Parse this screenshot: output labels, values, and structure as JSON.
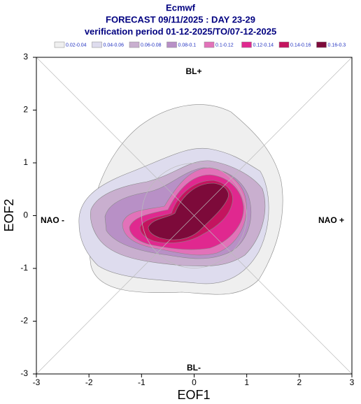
{
  "chart_data": {
    "type": "contour",
    "title": "Ecmwf",
    "subtitle": "FORECAST 09/11/2025 : DAY 23-29",
    "subtitle2": "verification period 01-12-2025/TO/07-12-2025",
    "x_label": "EOF1",
    "y_label": "EOF2",
    "xlim": [
      -3,
      3
    ],
    "ylim": [
      -3,
      3
    ],
    "xticks": [
      -3,
      -2,
      -1,
      0,
      1,
      2,
      3
    ],
    "yticks": [
      -3,
      -2,
      -1,
      0,
      1,
      2,
      3
    ],
    "annotations": [
      "BL+",
      "BL-",
      "NAO -",
      "NAO +"
    ],
    "series": [
      {
        "name": "0.02-0.04",
        "color": "#efefef"
      },
      {
        "name": "0.04-0.06",
        "color": "#dedcee"
      },
      {
        "name": "0.06-0.08",
        "color": "#c9afcf"
      },
      {
        "name": "0.08-0.1",
        "color": "#b890c6"
      },
      {
        "name": "0.1-0.12",
        "color": "#e272b9"
      },
      {
        "name": "0.12-0.14",
        "color": "#e0288f"
      },
      {
        "name": "0.14-0.16",
        "color": "#c4145f"
      },
      {
        "name": "0.16-0.3",
        "color": "#7d0a3a"
      }
    ]
  }
}
